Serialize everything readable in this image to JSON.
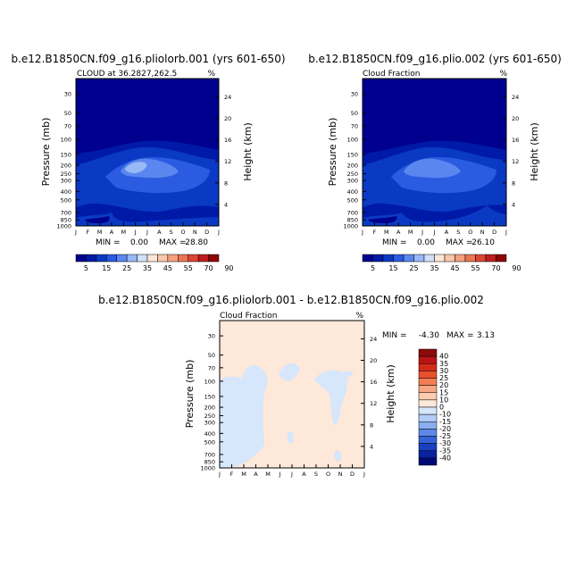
{
  "chart_data": [
    {
      "type": "heatmap",
      "title": "b.e12.B1850CN.f09_g16.pliolorb.001 (yrs 601-650)",
      "subtitle": "CLOUD at 36.2827,262.5",
      "units": "%",
      "ylabel": "Pressure (mb)",
      "ylabel_right": "Height (km)",
      "x_ticks": [
        "J",
        "F",
        "M",
        "A",
        "M",
        "J",
        "J",
        "A",
        "S",
        "O",
        "N",
        "D",
        "J"
      ],
      "y_ticks": [
        "30",
        "50",
        "70",
        "100",
        "150",
        "200",
        "250",
        "300",
        "400",
        "500",
        "700",
        "850",
        "1000"
      ],
      "y_right_ticks": [
        "24",
        "20",
        "16",
        "12",
        "8",
        "4"
      ],
      "ylim": [
        1000,
        20
      ],
      "stats": {
        "min_label": "MIN =",
        "min": "0.00",
        "max_label": "MAX =",
        "max": "28.80"
      },
      "colorbar": {
        "labels": [
          "5",
          "15",
          "25",
          "35",
          "45",
          "55",
          "70",
          "90"
        ],
        "colors": [
          "#00008f",
          "#001aa8",
          "#0a3ac4",
          "#2a5be0",
          "#5a86ef",
          "#98b8f6",
          "#cfe0fa",
          "#fbe6d8",
          "#f9c7aa",
          "#f4a07c",
          "#ec7452",
          "#db4632",
          "#be1e1e",
          "#8f0505"
        ]
      }
    },
    {
      "type": "heatmap",
      "title": "b.e12.B1850CN.f09_g16.plio.002 (yrs 601-650)",
      "subtitle": "Cloud Fraction",
      "units": "%",
      "ylabel": "Pressure (mb)",
      "ylabel_right": "Height (km)",
      "x_ticks": [
        "J",
        "F",
        "M",
        "A",
        "M",
        "J",
        "J",
        "A",
        "S",
        "O",
        "N",
        "D",
        "J"
      ],
      "y_ticks": [
        "30",
        "50",
        "70",
        "100",
        "150",
        "200",
        "250",
        "300",
        "400",
        "500",
        "700",
        "850",
        "1000"
      ],
      "y_right_ticks": [
        "24",
        "20",
        "16",
        "12",
        "8",
        "4"
      ],
      "ylim": [
        1000,
        20
      ],
      "stats": {
        "min_label": "MIN =",
        "min": "0.00",
        "max_label": "MAX =",
        "max": "26.10"
      },
      "colorbar": {
        "labels": [
          "5",
          "15",
          "25",
          "35",
          "45",
          "55",
          "70",
          "90"
        ],
        "colors": [
          "#00008f",
          "#001aa8",
          "#0a3ac4",
          "#2a5be0",
          "#5a86ef",
          "#98b8f6",
          "#cfe0fa",
          "#fbe6d8",
          "#f9c7aa",
          "#f4a07c",
          "#ec7452",
          "#db4632",
          "#be1e1e",
          "#8f0505"
        ]
      }
    },
    {
      "type": "heatmap",
      "title": "b.e12.B1850CN.f09_g16.pliolorb.001 - b.e12.B1850CN.f09_g16.plio.002",
      "subtitle": "Cloud Fraction",
      "units": "%",
      "ylabel": "Pressure (mb)",
      "ylabel_right": "Height (km)",
      "x_ticks": [
        "J",
        "F",
        "M",
        "A",
        "M",
        "J",
        "J",
        "A",
        "S",
        "O",
        "N",
        "D",
        "J"
      ],
      "y_ticks": [
        "30",
        "50",
        "70",
        "100",
        "150",
        "200",
        "250",
        "300",
        "400",
        "500",
        "700",
        "850",
        "1000"
      ],
      "y_right_ticks": [
        "24",
        "20",
        "16",
        "12",
        "8",
        "4"
      ],
      "ylim": [
        1000,
        20
      ],
      "stats": {
        "min_label": "MIN =",
        "min": "-4.30",
        "max_label": "MAX =",
        "max": "3.13"
      },
      "colorbar": {
        "labels": [
          "40",
          "35",
          "30",
          "25",
          "20",
          "15",
          "10",
          "0",
          "-10",
          "-15",
          "-20",
          "-25",
          "-30",
          "-35",
          "-40"
        ],
        "colors": [
          "#8c0a0a",
          "#b81414",
          "#d62a1a",
          "#e8502c",
          "#f27d52",
          "#f7a584",
          "#fbcbb2",
          "#fde8da",
          "#d6e6fb",
          "#b3cdf7",
          "#8aaef0",
          "#5f88e6",
          "#3462d8",
          "#1a3fc0",
          "#0a22a0",
          "#000b78"
        ]
      }
    }
  ]
}
